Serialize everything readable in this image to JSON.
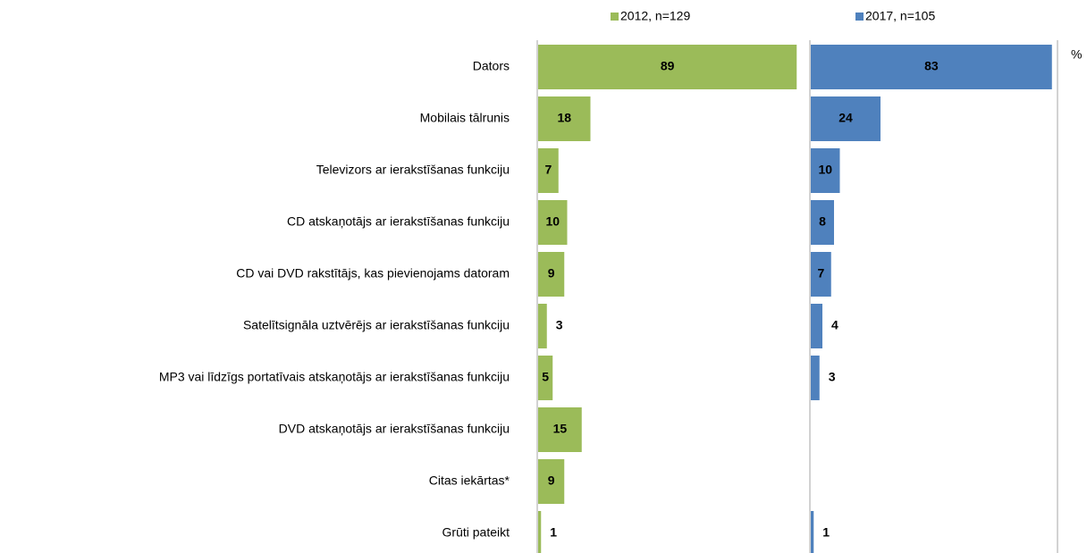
{
  "chart_data": {
    "type": "bar",
    "orientation": "horizontal",
    "unit": "%",
    "categories": [
      "Dators",
      "Mobilais tālrunis",
      "Televizors ar ierakstīšanas funkciju",
      "CD atskaņotājs ar ierakstīšanas funkciju",
      "CD vai DVD rakstītājs, kas pievienojams datoram",
      "Satelītsignāla uztvērējs ar ierakstīšanas funkciju",
      "MP3 vai līdzīgs portatīvais atskaņotājs ar ierakstīšanas funkciju",
      "DVD atskaņotājs ar ierakstīšanas funkciju",
      "Citas iekārtas*",
      "Grūti pateikt"
    ],
    "series": [
      {
        "name": "2012, n=129",
        "color": "#9bbb59",
        "values": [
          89,
          18,
          7,
          10,
          9,
          3,
          5,
          15,
          9,
          1
        ]
      },
      {
        "name": "2017, n=105",
        "color": "#4f81bd",
        "values": [
          83,
          24,
          10,
          8,
          7,
          4,
          3,
          null,
          null,
          1
        ]
      }
    ],
    "legend": "top"
  }
}
